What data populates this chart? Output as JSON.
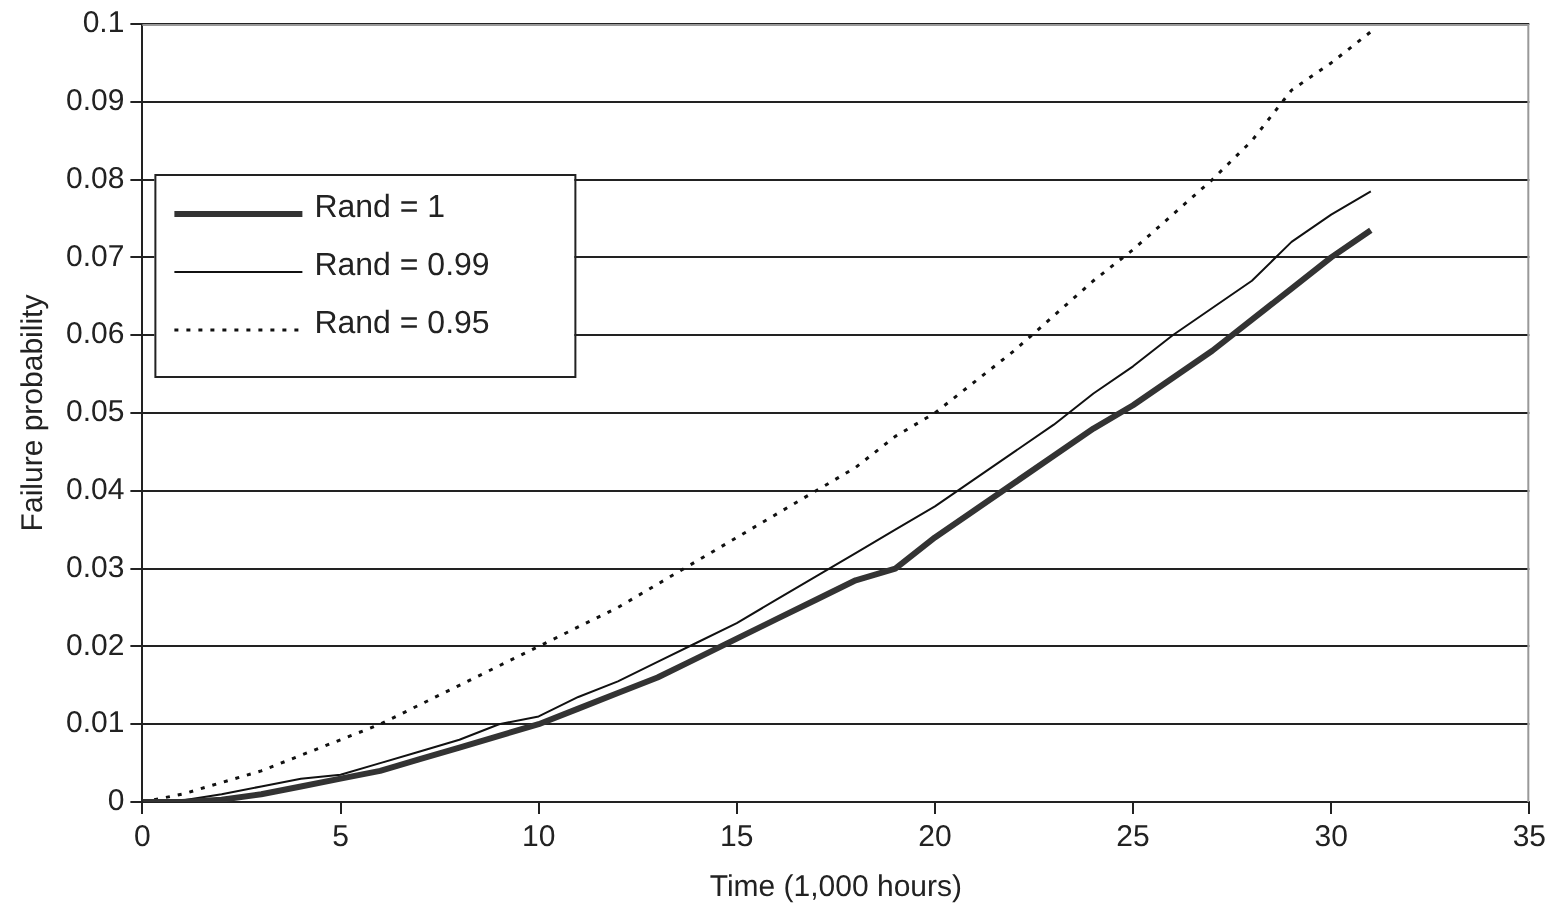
{
  "chart_data": {
    "type": "line",
    "xlabel": "Time (1,000 hours)",
    "ylabel": "Failure probability",
    "x": [
      0,
      1,
      2,
      3,
      4,
      5,
      6,
      7,
      8,
      9,
      10,
      11,
      12,
      13,
      14,
      15,
      16,
      17,
      18,
      19,
      20,
      21,
      22,
      23,
      24,
      25,
      26,
      27,
      28,
      29,
      30,
      31
    ],
    "series": [
      {
        "name": "Rand = 1",
        "color": "#333333",
        "line_style": "solid",
        "values": [
          0,
          0,
          0.0003,
          0.001,
          0.002,
          0.003,
          0.004,
          0.0055,
          0.007,
          0.0085,
          0.01,
          0.012,
          0.014,
          0.016,
          0.0185,
          0.021,
          0.0235,
          0.026,
          0.0285,
          0.03,
          0.034,
          0.0375,
          0.041,
          0.0445,
          0.048,
          0.051,
          0.0545,
          0.058,
          0.062,
          0.066,
          0.07,
          0.0735
        ]
      },
      {
        "name": "Rand = 0.99",
        "color": "#111111",
        "line_style": "solid",
        "values": [
          0,
          0.0002,
          0.001,
          0.002,
          0.003,
          0.0035,
          0.005,
          0.0065,
          0.008,
          0.01,
          0.011,
          0.0135,
          0.0155,
          0.018,
          0.0205,
          0.023,
          0.026,
          0.029,
          0.032,
          0.035,
          0.038,
          0.0415,
          0.045,
          0.0485,
          0.0525,
          0.056,
          0.06,
          0.0635,
          0.067,
          0.072,
          0.0755,
          0.0785
        ]
      },
      {
        "name": "Rand = 0.95",
        "color": "#111111",
        "line_style": "dotted",
        "values": [
          0,
          0.001,
          0.0025,
          0.004,
          0.006,
          0.008,
          0.01,
          0.0125,
          0.015,
          0.0175,
          0.02,
          0.0225,
          0.025,
          0.028,
          0.031,
          0.034,
          0.037,
          0.04,
          0.043,
          0.047,
          0.05,
          0.054,
          0.058,
          0.0625,
          0.067,
          0.071,
          0.0755,
          0.08,
          0.085,
          0.0915,
          0.095,
          0.099
        ]
      }
    ],
    "xlim": [
      0,
      35
    ],
    "xticks": [
      0,
      5,
      10,
      15,
      20,
      25,
      30,
      35
    ],
    "ylim": [
      0,
      0.1
    ],
    "yticks": [
      0,
      0.01,
      0.02,
      0.03,
      0.04,
      0.05,
      0.06,
      0.07,
      0.08,
      0.09,
      0.1
    ],
    "grid": "y",
    "legend": "top left",
    "marker": "none"
  }
}
